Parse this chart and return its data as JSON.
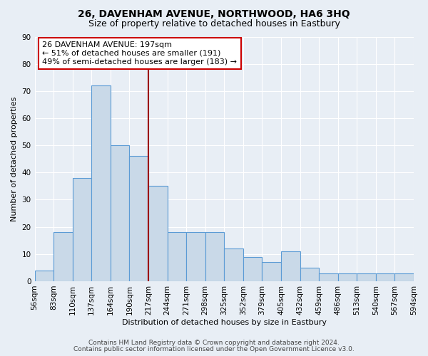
{
  "title1": "26, DAVENHAM AVENUE, NORTHWOOD, HA6 3HQ",
  "title2": "Size of property relative to detached houses in Eastbury",
  "xlabel": "Distribution of detached houses by size in Eastbury",
  "ylabel": "Number of detached properties",
  "bin_edges_labels": [
    "56sqm",
    "83sqm",
    "110sqm",
    "137sqm",
    "164sqm",
    "190sqm",
    "217sqm",
    "244sqm",
    "271sqm",
    "298sqm",
    "325sqm",
    "352sqm",
    "379sqm",
    "405sqm",
    "432sqm",
    "459sqm",
    "486sqm",
    "513sqm",
    "540sqm",
    "567sqm",
    "594sqm"
  ],
  "bar_values": [
    4,
    18,
    38,
    72,
    50,
    46,
    35,
    18,
    18,
    18,
    12,
    9,
    7,
    11,
    5,
    3,
    3,
    3,
    3,
    3
  ],
  "bar_color": "#c9d9e8",
  "bar_edge_color": "#5b9bd5",
  "vline_pos": 5.5,
  "vline_color": "#9b0000",
  "annotation_line1": "26 DAVENHAM AVENUE: 197sqm",
  "annotation_line2": "← 51% of detached houses are smaller (191)",
  "annotation_line3": "49% of semi-detached houses are larger (183) →",
  "annotation_box_facecolor": "#ffffff",
  "annotation_box_edgecolor": "#cc0000",
  "ylim": [
    0,
    90
  ],
  "yticks": [
    0,
    10,
    20,
    30,
    40,
    50,
    60,
    70,
    80,
    90
  ],
  "footer1": "Contains HM Land Registry data © Crown copyright and database right 2024.",
  "footer2": "Contains public sector information licensed under the Open Government Licence v3.0.",
  "bg_color": "#e8eef5",
  "plot_bg": "#e8eef5",
  "grid_color": "#ffffff",
  "title1_fontsize": 10,
  "title2_fontsize": 9,
  "axis_label_fontsize": 8,
  "tick_fontsize": 7.5,
  "footer_fontsize": 6.5,
  "annotation_fontsize": 8
}
